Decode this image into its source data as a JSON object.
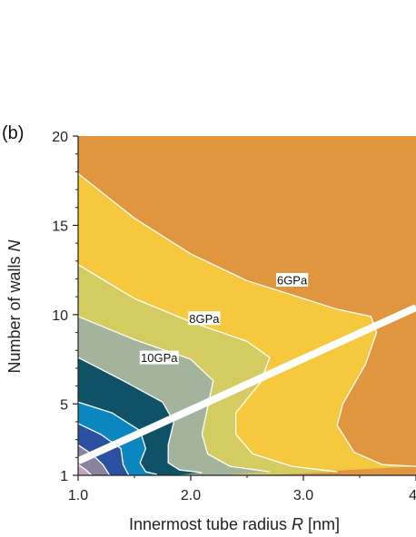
{
  "panel_label": "(b)",
  "chart_data": {
    "type": "contour",
    "xlabel_prefix": "Innermost tube radius ",
    "xlabel_var": "R",
    "xlabel_unit": " [nm]",
    "ylabel_prefix": "Number of walls ",
    "ylabel_var": "N",
    "xlim": [
      1.0,
      4.0
    ],
    "ylim": [
      1,
      20
    ],
    "x_ticks": [
      {
        "value": 1.0,
        "label": "1.0"
      },
      {
        "value": 2.0,
        "label": "2.0"
      },
      {
        "value": 3.0,
        "label": "3.0"
      },
      {
        "value": 4.0,
        "label": "4"
      }
    ],
    "y_ticks": [
      {
        "value": 1,
        "label": "1"
      },
      {
        "value": 5,
        "label": "5"
      },
      {
        "value": 10,
        "label": "10"
      },
      {
        "value": 15,
        "label": "15"
      },
      {
        "value": 20,
        "label": "20"
      }
    ],
    "contour_bands": [
      {
        "color": "#e0963e",
        "boundary": null
      },
      {
        "color": "#f5c83e",
        "boundary": [
          [
            1.0,
            17.9
          ],
          [
            1.5,
            15.4
          ],
          [
            2.0,
            13.4
          ],
          [
            2.5,
            11.9
          ],
          [
            3.0,
            10.9
          ],
          [
            3.3,
            10.3
          ],
          [
            3.6,
            9.9
          ],
          [
            3.65,
            9.0
          ],
          [
            3.55,
            7.2
          ],
          [
            3.35,
            5.0
          ],
          [
            3.3,
            3.8
          ],
          [
            3.45,
            2.3
          ],
          [
            3.7,
            1.6
          ],
          [
            4.0,
            1.5
          ]
        ]
      },
      {
        "color": "#d4cc60",
        "boundary": [
          [
            1.0,
            12.8
          ],
          [
            1.5,
            10.9
          ],
          [
            2.0,
            9.6
          ],
          [
            2.5,
            8.5
          ],
          [
            2.7,
            7.6
          ],
          [
            2.62,
            6.2
          ],
          [
            2.4,
            4.5
          ],
          [
            2.4,
            3.3
          ],
          [
            2.55,
            2.2
          ],
          [
            2.9,
            1.5
          ],
          [
            3.3,
            1.2
          ]
        ]
      },
      {
        "color": "#a4b49c",
        "boundary": [
          [
            1.0,
            9.9
          ],
          [
            1.5,
            8.6
          ],
          [
            2.0,
            7.5
          ],
          [
            2.2,
            6.3
          ],
          [
            2.15,
            4.8
          ],
          [
            2.1,
            3.3
          ],
          [
            2.15,
            2.2
          ],
          [
            2.35,
            1.5
          ],
          [
            2.7,
            1.2
          ]
        ]
      },
      {
        "color": "#0f5268",
        "boundary": [
          [
            1.0,
            7.6
          ],
          [
            1.4,
            6.3
          ],
          [
            1.75,
            5.1
          ],
          [
            1.85,
            4.0
          ],
          [
            1.8,
            2.7
          ],
          [
            1.8,
            1.7
          ],
          [
            1.9,
            1.3
          ],
          [
            2.1,
            1.15
          ]
        ]
      },
      {
        "color": "#0c86bf",
        "boundary": [
          [
            1.0,
            5.1
          ],
          [
            1.3,
            4.5
          ],
          [
            1.55,
            3.5
          ],
          [
            1.6,
            2.5
          ],
          [
            1.55,
            1.7
          ],
          [
            1.6,
            1.2
          ],
          [
            1.7,
            1.05
          ]
        ]
      },
      {
        "color": "#2c50a0",
        "boundary": [
          [
            1.0,
            3.9
          ],
          [
            1.2,
            3.3
          ],
          [
            1.38,
            2.5
          ],
          [
            1.4,
            1.6
          ],
          [
            1.45,
            1.0
          ]
        ]
      },
      {
        "color": "#8a83a0",
        "boundary": [
          [
            1.0,
            2.7
          ],
          [
            1.12,
            2.2
          ],
          [
            1.22,
            1.6
          ],
          [
            1.28,
            1.0
          ]
        ]
      },
      {
        "color": "#c8a2b8",
        "boundary": [
          [
            1.0,
            1.6
          ],
          [
            1.07,
            1.3
          ],
          [
            1.12,
            1.0
          ]
        ]
      }
    ],
    "contour_labels": [
      {
        "text": "6GPa",
        "x": 2.9,
        "y": 11.95
      },
      {
        "text": "8GPa",
        "x": 2.12,
        "y": 9.8
      },
      {
        "text": "10GPa",
        "x": 1.72,
        "y": 7.6
      }
    ],
    "line": {
      "color": "#ffffff",
      "points": [
        [
          1.0,
          1.8
        ],
        [
          4.0,
          10.4
        ]
      ]
    }
  }
}
